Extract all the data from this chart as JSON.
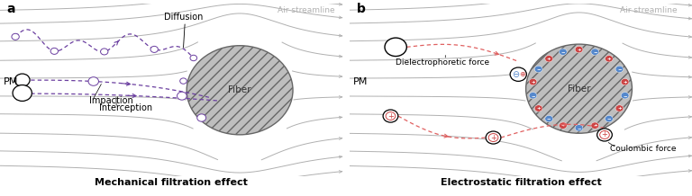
{
  "fig_width": 7.68,
  "fig_height": 2.18,
  "dpi": 100,
  "bg_color": "#ffffff",
  "streamline_color": "#b0b0b0",
  "fiber_fill_color": "#bebebe",
  "fiber_edge_color": "#666666",
  "purple_color": "#6b3fa0",
  "red_dashed_color": "#e06060",
  "blue_dot_color": "#5588cc",
  "red_dot_color": "#cc4444",
  "title_a": "Mechanical filtration effect",
  "title_b": "Electrostatic filtration effect",
  "label_a": "a",
  "label_b": "b",
  "label_pm": "PM",
  "label_air": "Air streamline",
  "label_diffusion": "Diffusion",
  "label_impaction": "Impaction",
  "label_interception": "Interception",
  "label_dielectrophoretic": "Dielectrophoretic force",
  "label_coulombic": "Coulombic force"
}
